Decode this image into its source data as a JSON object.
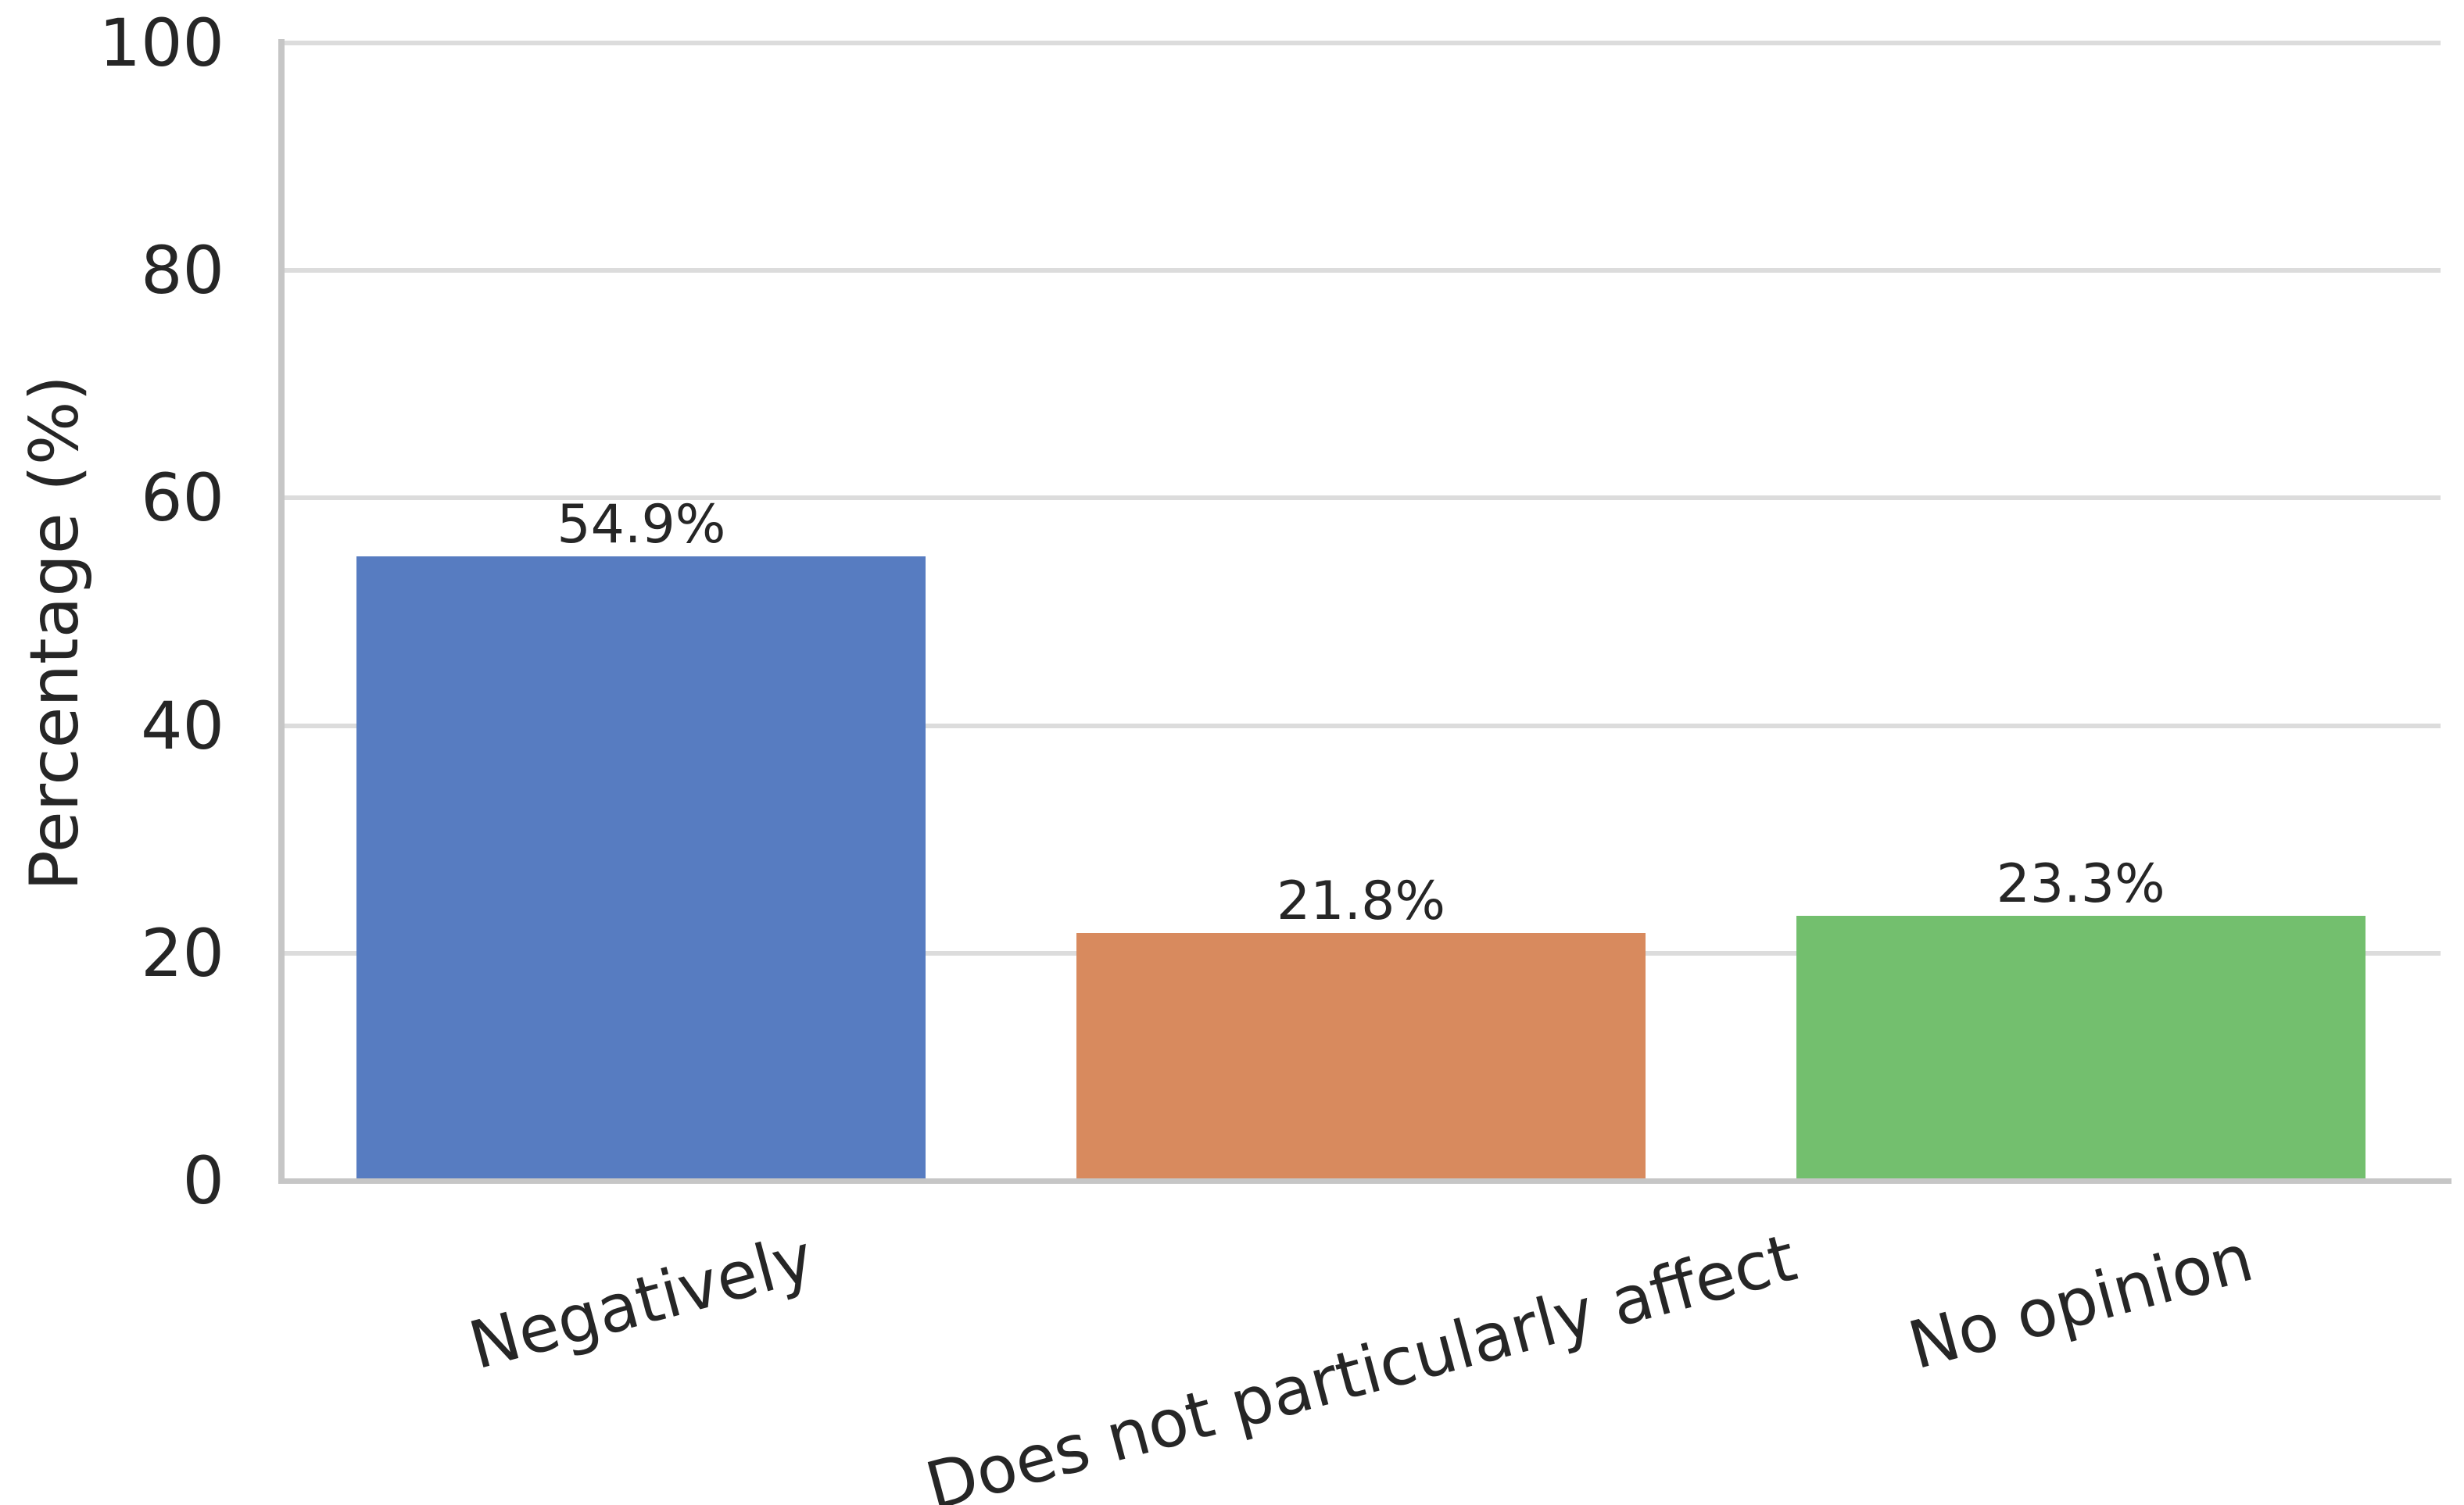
{
  "chart_data": {
    "type": "bar",
    "categories": [
      "Negatively",
      "Does not particularly affect",
      "No opinion"
    ],
    "values": [
      54.9,
      21.8,
      23.3
    ],
    "value_labels": [
      "54.9%",
      "21.8%",
      "23.3%"
    ],
    "bar_colors": [
      "#577cc1",
      "#d88a5e",
      "#73bf6e"
    ],
    "ylabel": "Percentage (%)",
    "xlabel": "",
    "title": "",
    "ylim": [
      0,
      100
    ],
    "yticks": [
      0,
      20,
      40,
      60,
      80,
      100
    ],
    "grid": "horizontal",
    "legend_position": "none",
    "text_color": "#262626",
    "grid_color": "#dcdcdc",
    "spine_color": "#c6c6c6",
    "background": "#ffffff"
  }
}
